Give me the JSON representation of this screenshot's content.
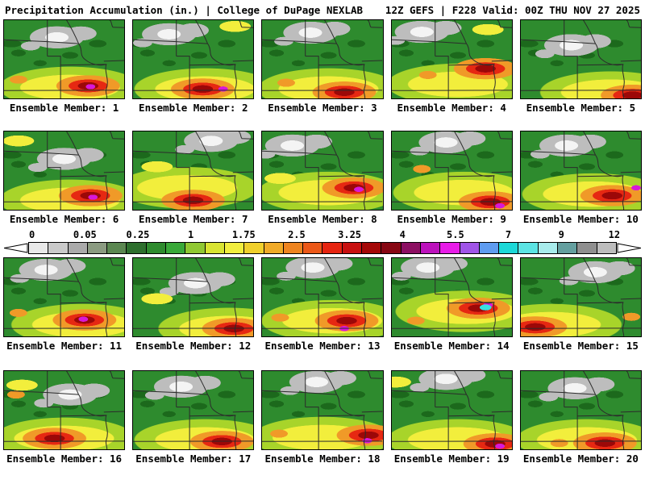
{
  "header": {
    "left_title": "Precipitation Accumulation (in.) | College of DuPage NEXLAB",
    "right_title": "12Z GEFS | F228 Valid: 00Z THU NOV 27 2025"
  },
  "colorbar": {
    "tick_labels": [
      "0",
      "0.05",
      "0.25",
      "1",
      "1.75",
      "2.5",
      "3.25",
      "4",
      "5.5",
      "7",
      "9",
      "12"
    ],
    "segment_colors": [
      "#e9e9e9",
      "#cacaca",
      "#aaaaaa",
      "#8b9b81",
      "#5b8751",
      "#2d6f2d",
      "#2e8b2e",
      "#39a939",
      "#90c832",
      "#d9e432",
      "#f2ee3e",
      "#f0d02c",
      "#f0aa28",
      "#ee8420",
      "#ec5818",
      "#e62410",
      "#c81010",
      "#a50808",
      "#870713",
      "#8c0f62",
      "#bc12bc",
      "#e81ce8",
      "#a055e8",
      "#5f9cf0",
      "#1cd8d8",
      "#5ce4e4",
      "#a8ecec",
      "#649f9f",
      "#8f8f8f",
      "#bdbdbd"
    ],
    "arrow_fill": "#ffffff",
    "outline_color": "#000000"
  },
  "map_colors": {
    "base_green": "#2e8b2e",
    "dark_green": "#1c691c",
    "yellow_green": "#a8d42a",
    "yellow": "#f2ee3c",
    "orange": "#f09a28",
    "red": "#e62812",
    "dark_red": "#9c0808",
    "magenta": "#d818d8",
    "cyan": "#38e0e0",
    "cloud_gray": "#bdbdbd",
    "cloud_white": "#f4f4f4"
  },
  "members": [
    {
      "label": "Ensemble Member: 1",
      "cloud": [
        44,
        22
      ],
      "yellow_band": [
        55,
        86
      ],
      "red_core": [
        70,
        84
      ],
      "magenta_core": [
        72,
        85
      ],
      "orange_spot": [
        12,
        76
      ],
      "yellow2": null,
      "cyan_spot": null
    },
    {
      "label": "Ensemble Member: 2",
      "cloud": [
        30,
        18
      ],
      "yellow_band": [
        60,
        88
      ],
      "red_core": [
        58,
        88
      ],
      "magenta_core": [
        75,
        88
      ],
      "orange_spot": null,
      "yellow2": [
        85,
        8
      ],
      "cyan_spot": null
    },
    {
      "label": "Ensemble Member: 3",
      "cloud": [
        40,
        16
      ],
      "yellow_band": [
        55,
        88
      ],
      "red_core": [
        68,
        92
      ],
      "magenta_core": null,
      "orange_spot": [
        20,
        80
      ],
      "yellow2": null,
      "cyan_spot": null
    },
    {
      "label": "Ensemble Member: 4",
      "cloud": [
        25,
        15
      ],
      "yellow_band": [
        55,
        82
      ],
      "red_core": [
        78,
        62
      ],
      "magenta_core": null,
      "orange_spot": [
        30,
        70
      ],
      "yellow2": [
        80,
        12
      ],
      "cyan_spot": null
    },
    {
      "label": "Ensemble Member: 5",
      "cloud": [
        42,
        32
      ],
      "yellow_band": [
        75,
        92
      ],
      "red_core": [
        93,
        96
      ],
      "magenta_core": null,
      "orange_spot": null,
      "yellow2": null,
      "cyan_spot": null
    },
    {
      "label": "Ensemble Member: 6",
      "cloud": [
        50,
        35
      ],
      "yellow_band": [
        55,
        88
      ],
      "red_core": [
        72,
        82
      ],
      "magenta_core": [
        74,
        84
      ],
      "orange_spot": null,
      "yellow2": [
        12,
        12
      ],
      "cyan_spot": null
    },
    {
      "label": "Ensemble Member: 7",
      "cloud": [
        65,
        12
      ],
      "yellow_band": [
        45,
        72
      ],
      "red_core": [
        50,
        88
      ],
      "magenta_core": null,
      "orange_spot": null,
      "yellow2": [
        20,
        45
      ],
      "cyan_spot": null
    },
    {
      "label": "Ensemble Member: 8",
      "cloud": [
        25,
        18
      ],
      "yellow_band": [
        55,
        78
      ],
      "red_core": [
        76,
        72
      ],
      "magenta_core": [
        80,
        74
      ],
      "orange_spot": null,
      "yellow2": [
        15,
        60
      ],
      "cyan_spot": null
    },
    {
      "label": "Ensemble Member: 9",
      "cloud": [
        45,
        14
      ],
      "yellow_band": [
        60,
        78
      ],
      "red_core": [
        82,
        90
      ],
      "magenta_core": [
        90,
        95
      ],
      "orange_spot": [
        25,
        48
      ],
      "yellow2": null,
      "cyan_spot": null
    },
    {
      "label": "Ensemble Member: 10",
      "cloud": [
        38,
        18
      ],
      "yellow_band": [
        60,
        80
      ],
      "red_core": [
        76,
        82
      ],
      "magenta_core": [
        96,
        72
      ],
      "orange_spot": null,
      "yellow2": null,
      "cyan_spot": null
    },
    {
      "label": "Ensemble Member: 11",
      "cloud": [
        35,
        15
      ],
      "yellow_band": [
        65,
        85
      ],
      "red_core": [
        67,
        79
      ],
      "magenta_core": [
        66,
        78
      ],
      "orange_spot": [
        12,
        70
      ],
      "yellow2": null,
      "cyan_spot": null
    },
    {
      "label": "Ensemble Member: 12",
      "cloud": [
        52,
        32
      ],
      "yellow_band": [
        80,
        90
      ],
      "red_core": [
        84,
        90
      ],
      "magenta_core": null,
      "orange_spot": null,
      "yellow2": [
        20,
        52
      ],
      "cyan_spot": null
    },
    {
      "label": "Ensemble Member: 13",
      "cloud": [
        42,
        12
      ],
      "yellow_band": [
        58,
        80
      ],
      "red_core": [
        70,
        80
      ],
      "magenta_core": [
        68,
        90
      ],
      "orange_spot": [
        15,
        76
      ],
      "yellow2": null,
      "cyan_spot": null
    },
    {
      "label": "Ensemble Member: 14",
      "cloud": [
        30,
        12
      ],
      "yellow_band": [
        62,
        68
      ],
      "red_core": [
        72,
        64
      ],
      "magenta_core": [
        80,
        60
      ],
      "orange_spot": [
        20,
        80
      ],
      "yellow2": null,
      "cyan_spot": [
        78,
        63
      ]
    },
    {
      "label": "Ensemble Member: 15",
      "cloud": [
        62,
        18
      ],
      "yellow_band": [
        25,
        85
      ],
      "red_core": [
        12,
        88
      ],
      "magenta_core": null,
      "orange_spot": [
        92,
        75
      ],
      "yellow2": null,
      "cyan_spot": null
    },
    {
      "label": "Ensemble Member: 16",
      "cloud": [
        55,
        30
      ],
      "yellow_band": [
        50,
        86
      ],
      "red_core": [
        42,
        86
      ],
      "magenta_core": null,
      "orange_spot": [
        10,
        30
      ],
      "yellow2": [
        15,
        18
      ],
      "cyan_spot": null
    },
    {
      "label": "Ensemble Member: 17",
      "cloud": [
        40,
        20
      ],
      "yellow_band": [
        60,
        88
      ],
      "red_core": [
        74,
        90
      ],
      "magenta_core": null,
      "orange_spot": null,
      "yellow2": null,
      "cyan_spot": null
    },
    {
      "label": "Ensemble Member: 18",
      "cloud": [
        45,
        14
      ],
      "yellow_band": [
        50,
        85
      ],
      "red_core": [
        88,
        82
      ],
      "magenta_core": [
        87,
        89
      ],
      "orange_spot": [
        14,
        80
      ],
      "yellow2": null,
      "cyan_spot": null
    },
    {
      "label": "Ensemble Member: 19",
      "cloud": [
        45,
        10
      ],
      "yellow_band": [
        55,
        88
      ],
      "red_core": [
        86,
        93
      ],
      "magenta_core": [
        90,
        96
      ],
      "orange_spot": null,
      "yellow2": [
        3,
        14
      ],
      "cyan_spot": null
    },
    {
      "label": "Ensemble Member: 20",
      "cloud": [
        45,
        22
      ],
      "yellow_band": [
        55,
        88
      ],
      "red_core": [
        70,
        92
      ],
      "magenta_core": null,
      "orange_spot": [
        32,
        92
      ],
      "yellow2": null,
      "cyan_spot": null
    }
  ]
}
